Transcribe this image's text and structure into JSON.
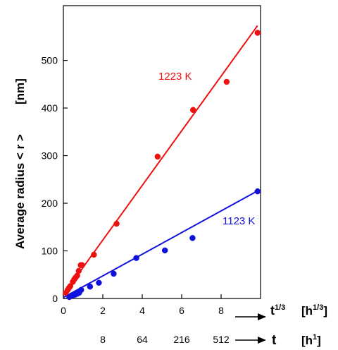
{
  "chart_data": {
    "type": "scatter",
    "ylabel_text": "Average radius < r >",
    "ylabel_unit": "[nm]",
    "xlabel_top": "t",
    "xlabel_top_exp": "1/3",
    "xlabel_top_unit": "[h",
    "xlabel_top_unit_exp": "1/3",
    "xlabel_top_unit_close": "]",
    "xlabel_bottom": "t",
    "xlabel_bottom_unit": "[h",
    "xlabel_bottom_unit_exp": "1",
    "xlabel_bottom_unit_close": "]",
    "xlim": [
      0,
      10
    ],
    "ylim": [
      0,
      615
    ],
    "x_ticks": [
      0,
      2,
      4,
      6,
      8
    ],
    "y_ticks": [
      0,
      100,
      200,
      300,
      400,
      500
    ],
    "secondary_x_ticks": [
      {
        "x": 2,
        "label": "8"
      },
      {
        "x": 4,
        "label": "64"
      },
      {
        "x": 6,
        "label": "216"
      },
      {
        "x": 8,
        "label": "512"
      }
    ],
    "grid": false,
    "series": [
      {
        "name": "1223 K",
        "color": "#ee1111",
        "points": [
          [
            0.12,
            12
          ],
          [
            0.22,
            18
          ],
          [
            0.28,
            22
          ],
          [
            0.35,
            26
          ],
          [
            0.48,
            35
          ],
          [
            0.55,
            40
          ],
          [
            0.62,
            44
          ],
          [
            0.7,
            48
          ],
          [
            0.78,
            58
          ],
          [
            0.88,
            70
          ],
          [
            0.95,
            70
          ],
          [
            1.55,
            92
          ],
          [
            2.7,
            157
          ],
          [
            4.78,
            298
          ],
          [
            6.58,
            396
          ],
          [
            8.28,
            455
          ],
          [
            9.85,
            558
          ]
        ],
        "fit": [
          [
            0.0,
            8
          ],
          [
            9.85,
            573
          ]
        ]
      },
      {
        "name": "1123 K",
        "color": "#1111dd",
        "points": [
          [
            0.3,
            3
          ],
          [
            0.4,
            6
          ],
          [
            0.5,
            7
          ],
          [
            0.6,
            8
          ],
          [
            0.7,
            10
          ],
          [
            0.8,
            12
          ],
          [
            0.9,
            18
          ],
          [
            1.35,
            25
          ],
          [
            1.8,
            33
          ],
          [
            2.55,
            52
          ],
          [
            3.7,
            85
          ],
          [
            5.15,
            101
          ],
          [
            6.55,
            127
          ],
          [
            9.85,
            225
          ]
        ],
        "fit": [
          [
            0.0,
            2
          ],
          [
            9.85,
            226
          ]
        ]
      }
    ]
  }
}
